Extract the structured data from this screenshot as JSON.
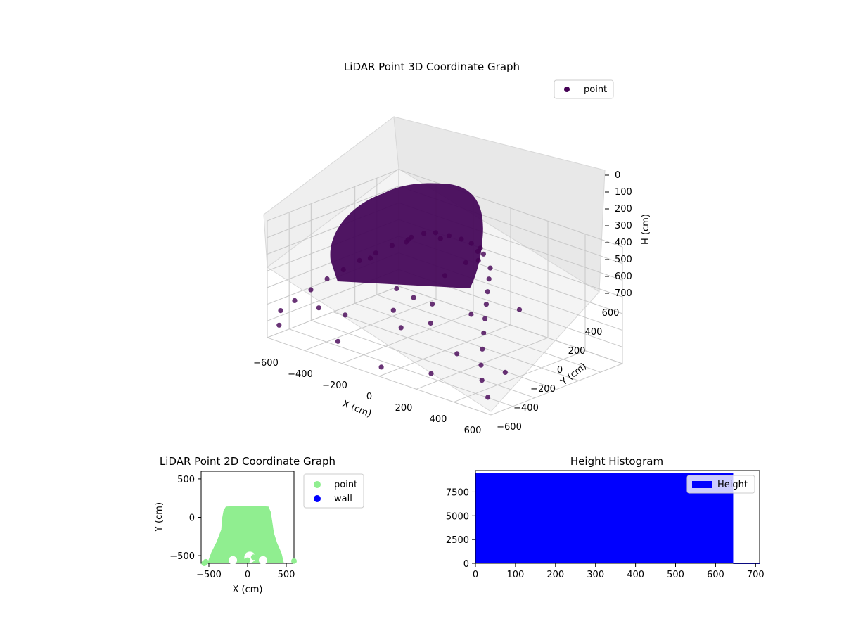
{
  "chart_data": [
    {
      "type": "scatter",
      "dimensions": 3,
      "title": "LiDAR Point 3D Coordinate Graph",
      "xlabel": "X (cm)",
      "ylabel": "Y (cm)",
      "zlabel": "H (cm)",
      "xlim": [
        -600,
        600
      ],
      "ylim": [
        -600,
        600
      ],
      "zlim": [
        0,
        700
      ],
      "z_axis_inverted": true,
      "x_ticks": [
        "−600",
        "−400",
        "−200",
        "0",
        "200",
        "400",
        "600"
      ],
      "y_ticks": [
        "−600",
        "−400",
        "−200",
        "0",
        "200",
        "400",
        "600"
      ],
      "z_ticks": [
        "0",
        "100",
        "200",
        "300",
        "400",
        "500",
        "600",
        "700"
      ],
      "grid": true,
      "legend_position": "top-right",
      "series": [
        {
          "name": "point",
          "color": "#440154",
          "points": [
            [
              -120,
              120,
              70
            ],
            [
              -60,
              140,
              70
            ],
            [
              0,
              150,
              70
            ],
            [
              60,
              140,
              70
            ],
            [
              120,
              120,
              70
            ],
            [
              -160,
              80,
              80
            ],
            [
              160,
              80,
              80
            ],
            [
              -180,
              0,
              90
            ],
            [
              180,
              0,
              90
            ],
            [
              -160,
              -80,
              90
            ],
            [
              160,
              -80,
              90
            ],
            [
              -100,
              130,
              100
            ],
            [
              100,
              130,
              100
            ],
            [
              -220,
              40,
              130
            ],
            [
              220,
              40,
              130
            ],
            [
              -260,
              -40,
              160
            ],
            [
              260,
              -40,
              160
            ],
            [
              -300,
              -120,
              200
            ],
            [
              300,
              -120,
              200
            ],
            [
              -340,
              -200,
              240
            ],
            [
              340,
              -200,
              240
            ],
            [
              -380,
              -280,
              290
            ],
            [
              380,
              -280,
              290
            ],
            [
              -420,
              -360,
              340
            ],
            [
              420,
              -360,
              340
            ],
            [
              -460,
              -440,
              400
            ],
            [
              460,
              -440,
              400
            ],
            [
              -500,
              -520,
              460
            ],
            [
              500,
              -520,
              460
            ],
            [
              -540,
              -580,
              520
            ],
            [
              540,
              -580,
              520
            ],
            [
              -200,
              -100,
              380
            ],
            [
              200,
              -100,
              380
            ],
            [
              -100,
              -300,
              420
            ],
            [
              100,
              -300,
              420
            ],
            [
              0,
              -400,
              460
            ],
            [
              -300,
              -400,
              500
            ],
            [
              300,
              -400,
              500
            ],
            [
              -500,
              -300,
              560
            ],
            [
              500,
              -300,
              560
            ],
            [
              -560,
              -560,
              620
            ],
            [
              560,
              -560,
              620
            ],
            [
              0,
              -580,
              650
            ],
            [
              -250,
              -550,
              600
            ],
            [
              250,
              -550,
              600
            ],
            [
              -400,
              0,
              300
            ],
            [
              400,
              0,
              300
            ],
            [
              -50,
              -200,
              350
            ],
            [
              50,
              -200,
              350
            ],
            [
              0,
              0,
              250
            ]
          ]
        }
      ]
    },
    {
      "type": "scatter",
      "dimensions": 2,
      "title": "LiDAR Point 2D Coordinate Graph",
      "xlabel": "X (cm)",
      "ylabel": "Y (cm)",
      "xlim": [
        -600,
        600
      ],
      "ylim": [
        -600,
        600
      ],
      "x_ticks": [
        "−500",
        "0",
        "500"
      ],
      "y_ticks": [
        "−500",
        "0",
        "500"
      ],
      "legend_position": "outside-right",
      "series": [
        {
          "name": "point",
          "color": "#90ee90",
          "outline": [
            [
              -520,
              -600
            ],
            [
              -470,
              -460
            ],
            [
              -400,
              -320
            ],
            [
              -340,
              -160
            ],
            [
              -330,
              -20
            ],
            [
              -310,
              90
            ],
            [
              -280,
              140
            ],
            [
              -80,
              150
            ],
            [
              100,
              150
            ],
            [
              270,
              140
            ],
            [
              300,
              70
            ],
            [
              320,
              -60
            ],
            [
              340,
              -200
            ],
            [
              380,
              -330
            ],
            [
              440,
              -470
            ],
            [
              470,
              -600
            ]
          ],
          "points": [
            [
              -560,
              -600
            ],
            [
              -540,
              -580
            ],
            [
              0,
              -560
            ],
            [
              -120,
              -500
            ],
            [
              80,
              -520
            ],
            [
              600,
              -570
            ]
          ]
        },
        {
          "name": "wall",
          "color": "#0000ff",
          "points": []
        }
      ]
    },
    {
      "type": "bar",
      "title": "Height Histogram",
      "xlim": [
        0,
        710
      ],
      "ylim": [
        0,
        9750
      ],
      "x_ticks": [
        "0",
        "100",
        "200",
        "300",
        "400",
        "500",
        "600",
        "700"
      ],
      "y_ticks": [
        "0",
        "2500",
        "5000",
        "7500"
      ],
      "legend_position": "top-right",
      "series": [
        {
          "name": "Height",
          "color": "#0000ff",
          "bins": [
            {
              "x0": 0,
              "x1": 644,
              "count": 9500
            },
            {
              "x0": 644,
              "x1": 710,
              "count": 40
            }
          ]
        }
      ]
    }
  ]
}
